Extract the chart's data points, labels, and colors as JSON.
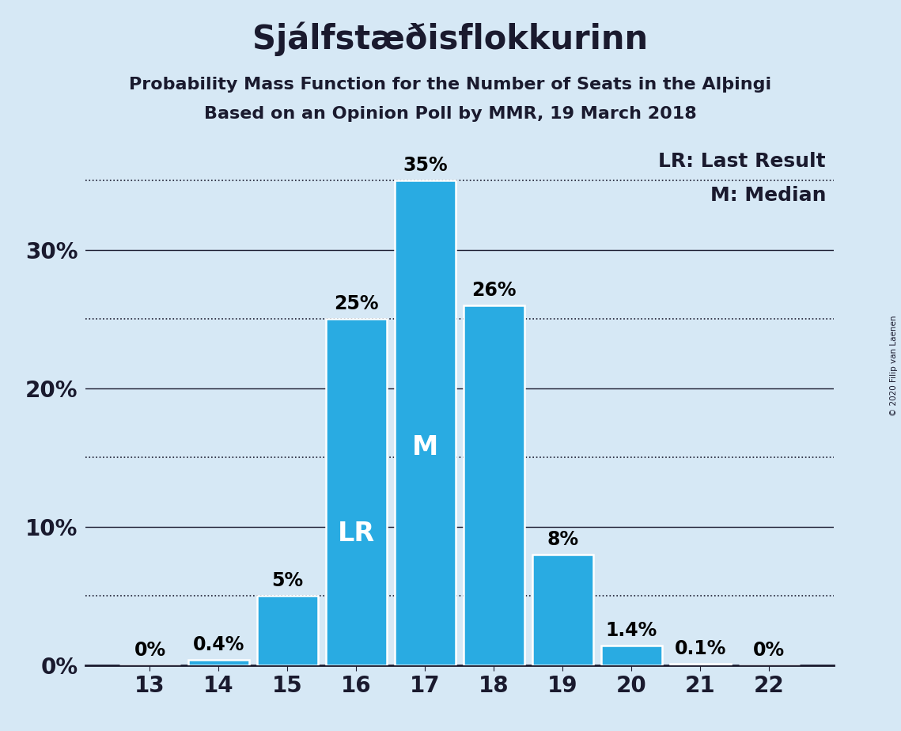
{
  "title": "Sjálfstæðisflokkurinn",
  "subtitle1": "Probability Mass Function for the Number of Seats in the Alþingi",
  "subtitle2": "Based on an Opinion Poll by MMR, 19 March 2018",
  "copyright": "© 2020 Filip van Laenen",
  "categories": [
    13,
    14,
    15,
    16,
    17,
    18,
    19,
    20,
    21,
    22
  ],
  "values": [
    0.0,
    0.4,
    5.0,
    25.0,
    35.0,
    26.0,
    8.0,
    1.4,
    0.1,
    0.0
  ],
  "labels": [
    "0%",
    "0.4%",
    "5%",
    "25%",
    "35%",
    "26%",
    "8%",
    "1.4%",
    "0.1%",
    "0%"
  ],
  "bar_color": "#29ABE2",
  "bar_edge_color": "#FFFFFF",
  "background_color": "#D6E8F5",
  "last_result_seat": 16,
  "median_seat": 17,
  "lr_label": "LR",
  "median_label": "M",
  "lr_legend": "LR: Last Result",
  "m_legend": "M: Median",
  "solid_lines": [
    10,
    20,
    30
  ],
  "dotted_lines": [
    5,
    15,
    25,
    35
  ],
  "ylim_max": 38,
  "ytick_positions": [
    0,
    10,
    20,
    30
  ],
  "ytick_labels": [
    "0%",
    "10%",
    "20%",
    "30%"
  ],
  "title_fontsize": 30,
  "subtitle_fontsize": 16,
  "ytick_fontsize": 20,
  "xtick_fontsize": 20,
  "bar_label_fontsize": 17,
  "in_bar_label_fontsize": 24,
  "legend_fontsize": 18
}
